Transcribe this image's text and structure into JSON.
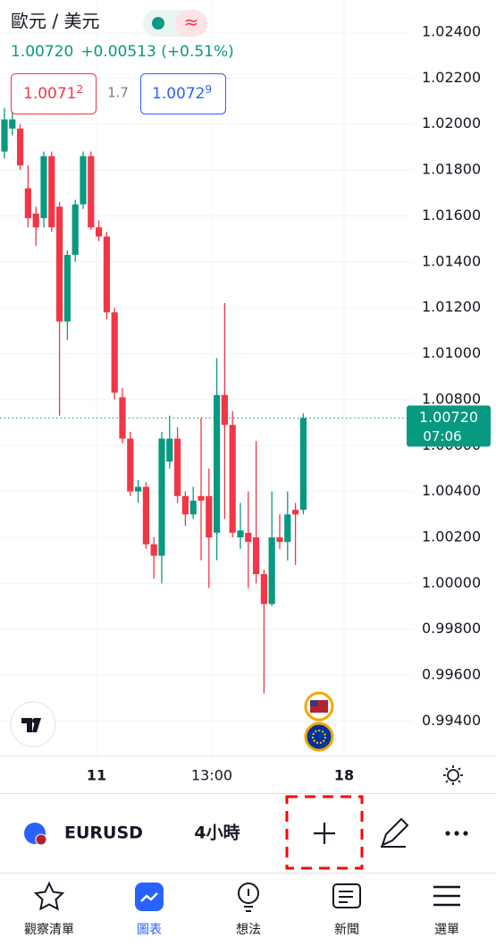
{
  "header": {
    "symbol_name": "歐元 / 美元",
    "price": "1.00720",
    "change": "+0.00513 (+0.51%)",
    "bid": "1.0071",
    "bid_pip": "2",
    "spread": "1.7",
    "ask": "1.0072",
    "ask_pip": "9"
  },
  "chart_data": {
    "type": "candlestick",
    "up_color": "#089981",
    "down_color": "#f23645",
    "open": [
      1.0188,
      1.0198,
      1.0198,
      1.0172,
      1.0161,
      1.0159,
      1.0186,
      1.0164,
      1.0114,
      1.0143,
      1.0165,
      1.0186,
      1.0155,
      1.0151,
      1.0118,
      1.0081,
      1.0063,
      1.004,
      1.0042,
      1.0017,
      1.0012,
      1.0053,
      1.0063,
      1.0038,
      1.003,
      1.0038,
      1.0038,
      1.0022,
      1.0082,
      1.0069,
      1.002,
      1.0022,
      1.002,
      1.0004,
      0.9991,
      1.002,
      1.0018,
      1.0032,
      1.0032
    ],
    "high": [
      1.0207,
      1.0208,
      1.02,
      1.0182,
      1.0164,
      1.0188,
      1.0188,
      1.0166,
      1.0145,
      1.0167,
      1.0188,
      1.0188,
      1.0158,
      1.0153,
      1.012,
      1.0085,
      1.0066,
      1.0045,
      1.0044,
      1.002,
      1.0066,
      1.0073,
      1.0068,
      1.004,
      1.0042,
      1.0072,
      1.005,
      1.0098,
      1.0122,
      1.0075,
      1.0035,
      1.004,
      1.0062,
      1.0006,
      1.004,
      1.003,
      1.004,
      1.0035,
      1.0074
    ],
    "low": [
      1.0185,
      1.0195,
      1.018,
      1.0155,
      1.0147,
      1.0155,
      1.0153,
      1.0073,
      1.0106,
      1.014,
      1.0163,
      1.0154,
      1.0149,
      1.0115,
      1.008,
      1.0061,
      1.0038,
      1.0035,
      1.0015,
      1.0002,
      1.0,
      1.005,
      1.0035,
      1.0025,
      1.0028,
      1.001,
      0.9998,
      1.001,
      1.0028,
      1.002,
      1.0015,
      0.9998,
      1.0,
      0.9952,
      0.999,
      1.0015,
      1.001,
      1.0008,
      1.003
    ],
    "close": [
      1.0202,
      1.0202,
      1.0182,
      1.0159,
      1.0155,
      1.0186,
      1.0155,
      1.0114,
      1.0143,
      1.0165,
      1.0186,
      1.0155,
      1.0151,
      1.0118,
      1.0083,
      1.0063,
      1.004,
      1.0042,
      1.0017,
      1.0012,
      1.0063,
      1.0063,
      1.0038,
      1.003,
      1.0036,
      1.0036,
      1.002,
      1.0082,
      1.0069,
      1.0022,
      1.0023,
      1.0018,
      1.0004,
      0.9991,
      1.002,
      1.0018,
      1.003,
      1.003,
      1.0072
    ],
    "ylim": [
      0.9925,
      1.0254
    ],
    "yticks": [
      {
        "value": 1.024,
        "label": "1.02400"
      },
      {
        "value": 1.022,
        "label": "1.02200"
      },
      {
        "value": 1.02,
        "label": "1.02000"
      },
      {
        "value": 1.018,
        "label": "1.01800"
      },
      {
        "value": 1.016,
        "label": "1.01600"
      },
      {
        "value": 1.014,
        "label": "1.01400"
      },
      {
        "value": 1.012,
        "label": "1.01200"
      },
      {
        "value": 1.01,
        "label": "1.01000"
      },
      {
        "value": 1.008,
        "label": "1.00800"
      },
      {
        "value": 1.006,
        "label": "1.00600"
      },
      {
        "value": 1.004,
        "label": "1.00400"
      },
      {
        "value": 1.002,
        "label": "1.00200"
      },
      {
        "value": 1.0,
        "label": "1.00000"
      },
      {
        "value": 0.998,
        "label": "0.99800"
      },
      {
        "value": 0.996,
        "label": "0.99600"
      },
      {
        "value": 0.994,
        "label": "0.99400"
      }
    ],
    "xlabels": [
      "11",
      "13:00",
      "18"
    ],
    "last_price": {
      "value": 1.0072,
      "label": "1.00720",
      "countdown": "07:06"
    },
    "grid": true
  },
  "toolbar": {
    "symbol": "EURUSD",
    "interval": "4小時"
  },
  "nav": [
    "觀察清單",
    "圖表",
    "想法",
    "新聞",
    "選單"
  ]
}
